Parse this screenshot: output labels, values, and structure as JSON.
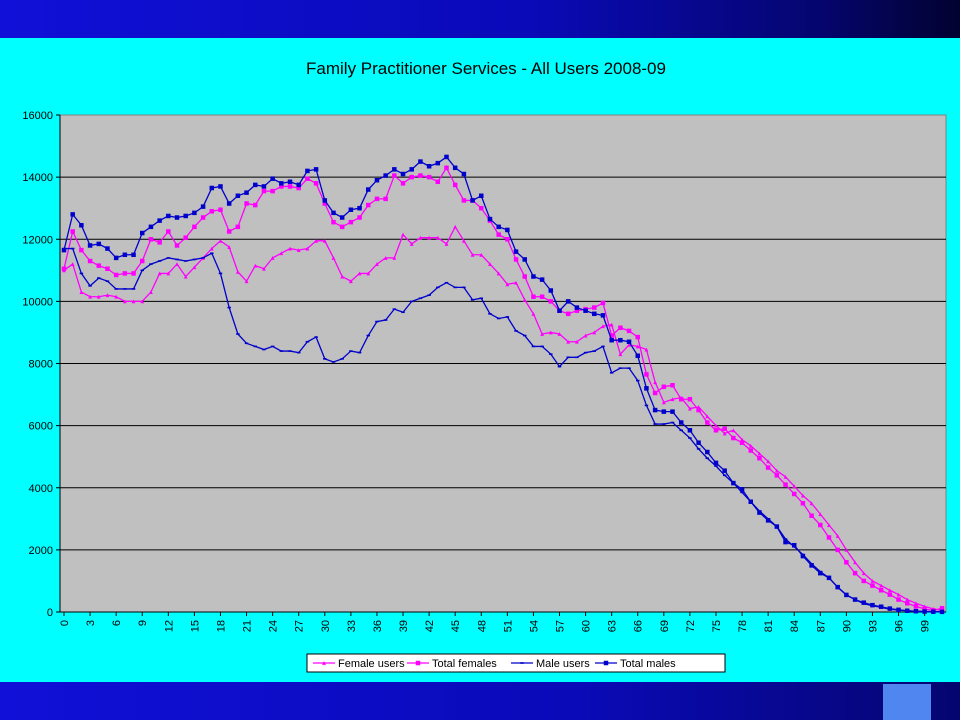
{
  "chart_data": {
    "type": "line",
    "title": "Family Practitioner Services - All Users 2008-09",
    "xlabel": "",
    "ylabel": "",
    "ylim": [
      0,
      16000
    ],
    "yticks": [
      0,
      2000,
      4000,
      6000,
      8000,
      10000,
      12000,
      14000,
      16000
    ],
    "x": [
      0,
      1,
      2,
      3,
      4,
      5,
      6,
      7,
      8,
      9,
      10,
      11,
      12,
      13,
      14,
      15,
      16,
      17,
      18,
      19,
      20,
      21,
      22,
      23,
      24,
      25,
      26,
      27,
      28,
      29,
      30,
      31,
      32,
      33,
      34,
      35,
      36,
      37,
      38,
      39,
      40,
      41,
      42,
      43,
      44,
      45,
      46,
      47,
      48,
      49,
      50,
      51,
      52,
      53,
      54,
      55,
      56,
      57,
      58,
      59,
      60,
      61,
      62,
      63,
      64,
      65,
      66,
      67,
      68,
      69,
      70,
      71,
      72,
      73,
      74,
      75,
      76,
      77,
      78,
      79,
      80,
      81,
      82,
      83,
      84,
      85,
      86,
      87,
      88,
      89,
      90,
      91,
      92,
      93,
      94,
      95,
      96,
      97,
      98,
      99,
      100,
      101
    ],
    "xticks": [
      0,
      3,
      6,
      9,
      12,
      15,
      18,
      21,
      24,
      27,
      30,
      33,
      36,
      39,
      42,
      45,
      48,
      51,
      54,
      57,
      60,
      63,
      66,
      69,
      72,
      75,
      78,
      81,
      84,
      87,
      90,
      93,
      96,
      99
    ],
    "grid": "horizontal",
    "legend_position": "bottom",
    "series": [
      {
        "name": "Female users",
        "color": "#ff00ff",
        "marker": "triangle",
        "values": [
          11000,
          11200,
          10300,
          10150,
          10150,
          10200,
          10150,
          10000,
          10000,
          10000,
          10300,
          10900,
          10900,
          11200,
          10800,
          11100,
          11400,
          11700,
          11950,
          11750,
          10950,
          10650,
          11150,
          11050,
          11400,
          11550,
          11700,
          11650,
          11700,
          11950,
          11950,
          11400,
          10800,
          10650,
          10900,
          10900,
          11200,
          11400,
          11400,
          12150,
          11850,
          12050,
          12050,
          12050,
          11850,
          12400,
          11950,
          11500,
          11500,
          11200,
          10900,
          10550,
          10600,
          10050,
          9600,
          8950,
          9000,
          8950,
          8700,
          8700,
          8900,
          9000,
          9200,
          9250,
          8300,
          8600,
          8550,
          8450,
          7400,
          6750,
          6850,
          6900,
          6550,
          6600,
          6300,
          6000,
          5750,
          5850,
          5550,
          5350,
          5100,
          4850,
          4550,
          4350,
          4050,
          3750,
          3500,
          3150,
          2800,
          2450,
          2000,
          1600,
          1250,
          1000,
          850,
          700,
          560,
          400,
          280,
          180,
          100,
          50
        ]
      },
      {
        "name": "Total females",
        "color": "#ff00ff",
        "marker": "square",
        "values": [
          11050,
          12250,
          11650,
          11300,
          11150,
          11050,
          10850,
          10900,
          10900,
          11300,
          12000,
          11900,
          12250,
          11800,
          12050,
          12400,
          12700,
          12900,
          12950,
          12250,
          12400,
          13150,
          13100,
          13550,
          13550,
          13700,
          13700,
          13650,
          13950,
          13800,
          13150,
          12550,
          12400,
          12550,
          12700,
          13100,
          13300,
          13300,
          14050,
          13800,
          14000,
          14050,
          14000,
          13850,
          14300,
          13750,
          13250,
          13250,
          13000,
          12600,
          12150,
          12000,
          11350,
          10800,
          10150,
          10150,
          10000,
          9700,
          9600,
          9700,
          9750,
          9800,
          9950,
          8900,
          9150,
          9050,
          8850,
          7650,
          7050,
          7250,
          7300,
          6850,
          6850,
          6500,
          6100,
          5850,
          5900,
          5600,
          5450,
          5200,
          4950,
          4650,
          4400,
          4100,
          3800,
          3500,
          3100,
          2800,
          2400,
          2000,
          1600,
          1250,
          1000,
          850,
          700,
          560,
          400,
          280,
          180,
          100,
          50,
          120
        ]
      },
      {
        "name": "Male users",
        "color": "#0000cc",
        "marker": "dash",
        "values": [
          11700,
          11700,
          10900,
          10500,
          10750,
          10650,
          10400,
          10400,
          10400,
          11000,
          11200,
          11300,
          11400,
          11350,
          11300,
          11350,
          11400,
          11550,
          10900,
          9800,
          8950,
          8650,
          8550,
          8450,
          8550,
          8400,
          8400,
          8350,
          8700,
          8850,
          8150,
          8050,
          8150,
          8400,
          8350,
          8900,
          9350,
          9400,
          9750,
          9650,
          10000,
          10100,
          10200,
          10450,
          10600,
          10450,
          10450,
          10050,
          10100,
          9600,
          9450,
          9500,
          9050,
          8900,
          8550,
          8550,
          8300,
          7900,
          8200,
          8200,
          8350,
          8400,
          8550,
          7700,
          7850,
          7850,
          7450,
          6650,
          6050,
          6050,
          6100,
          5850,
          5600,
          5250,
          4950,
          4700,
          4400,
          4150,
          3850,
          3550,
          3250,
          3000,
          2750,
          2350,
          2100,
          1850,
          1550,
          1300,
          1100,
          800,
          550,
          400,
          270,
          200,
          150,
          90,
          60,
          40,
          25,
          15,
          10,
          5
        ]
      },
      {
        "name": "Total males",
        "color": "#0000cc",
        "marker": "square",
        "values": [
          11650,
          12800,
          12450,
          11800,
          11850,
          11700,
          11400,
          11500,
          11500,
          12200,
          12400,
          12600,
          12750,
          12700,
          12750,
          12850,
          13050,
          13650,
          13700,
          13150,
          13400,
          13500,
          13750,
          13700,
          13950,
          13800,
          13850,
          13750,
          14200,
          14250,
          13250,
          12850,
          12700,
          12950,
          13000,
          13600,
          13900,
          14050,
          14250,
          14100,
          14250,
          14500,
          14350,
          14450,
          14650,
          14300,
          14100,
          13250,
          13400,
          12650,
          12400,
          12300,
          11600,
          11350,
          10800,
          10700,
          10350,
          9700,
          10000,
          9800,
          9700,
          9600,
          9550,
          8750,
          8750,
          8700,
          8250,
          7200,
          6500,
          6450,
          6450,
          6100,
          5850,
          5450,
          5150,
          4800,
          4550,
          4150,
          3950,
          3550,
          3200,
          2950,
          2750,
          2250,
          2150,
          1800,
          1500,
          1250,
          1100,
          800,
          550,
          400,
          300,
          220,
          170,
          110,
          70,
          40,
          25,
          15,
          10,
          5
        ]
      }
    ]
  }
}
